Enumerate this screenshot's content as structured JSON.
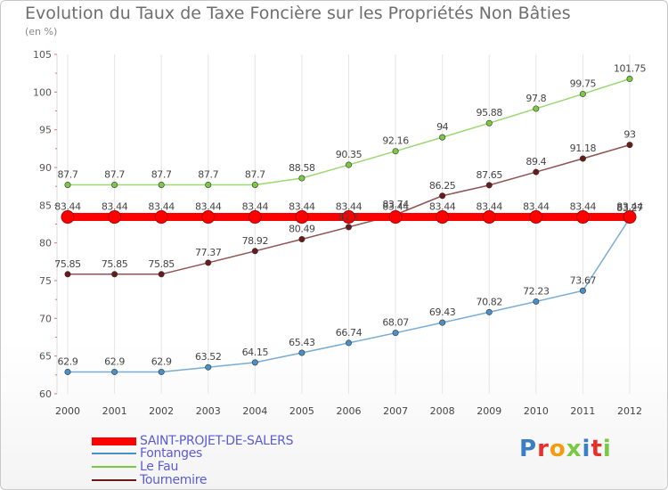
{
  "chart_data": {
    "type": "line",
    "title": "Evolution du Taux de Taxe Foncière sur les Propriétés Non Bâties",
    "ylabel": "(en %)",
    "xlabel": "",
    "ylim": [
      60,
      105
    ],
    "yticks": [
      60,
      65,
      70,
      75,
      80,
      85,
      90,
      95,
      100,
      105
    ],
    "categories": [
      "2000",
      "2001",
      "2002",
      "2003",
      "2004",
      "2005",
      "2006",
      "2007",
      "2008",
      "2009",
      "2010",
      "2011",
      "2012"
    ],
    "series": [
      {
        "name": "SAINT-PROJET-DE-SALERS",
        "color": "#ff0000",
        "values": [
          83.44,
          83.44,
          83.44,
          83.44,
          83.44,
          83.44,
          83.44,
          83.44,
          83.44,
          83.44,
          83.44,
          83.44,
          83.44
        ],
        "labels": [
          "83.44",
          "83.44",
          "83.44",
          "83.44",
          "83.44",
          "83.44",
          "83.44",
          "83.44",
          "83.44",
          "83.44",
          "83.44",
          "83.44",
          "83.44"
        ]
      },
      {
        "name": "Fontanges",
        "color": "#4a90c8",
        "values": [
          62.9,
          62.9,
          62.9,
          63.52,
          64.15,
          65.43,
          66.74,
          68.07,
          69.43,
          70.82,
          72.23,
          73.67,
          83.27
        ],
        "labels": [
          "62.9",
          "62.9",
          "62.9",
          "63.52",
          "64.15",
          "65.43",
          "66.74",
          "68.07",
          "69.43",
          "70.82",
          "72.23",
          "73.67",
          "83.27"
        ]
      },
      {
        "name": "Le Fau",
        "color": "#7ac943",
        "values": [
          87.7,
          87.7,
          87.7,
          87.7,
          87.7,
          88.58,
          90.35,
          92.16,
          94,
          95.88,
          97.8,
          99.75,
          101.75
        ],
        "labels": [
          "87.7",
          "87.7",
          "87.7",
          "87.7",
          "87.7",
          "88.58",
          "90.35",
          "92.16",
          "94",
          "95.88",
          "97.8",
          "99.75",
          "101.75"
        ]
      },
      {
        "name": "Tournemire",
        "color": "#6b1a1a",
        "values": [
          75.85,
          75.85,
          75.85,
          77.37,
          78.92,
          80.49,
          82.1,
          83.74,
          86.25,
          87.65,
          89.4,
          91.18,
          93
        ],
        "labels": [
          "75.85",
          "75.85",
          "75.85",
          "77.37",
          "78.92",
          "80.49",
          "82.1",
          "83.74",
          "86.25",
          "87.65",
          "89.4",
          "91.18",
          "93"
        ]
      }
    ],
    "legend": {
      "position": "bottom-left"
    }
  },
  "logo": {
    "text": "Proxiti",
    "letter_colors": [
      "#3a7fc1",
      "#e8302a",
      "#f39c12",
      "#7ac943",
      "#3a7fc1",
      "#e8302a",
      "#7ac943"
    ]
  }
}
